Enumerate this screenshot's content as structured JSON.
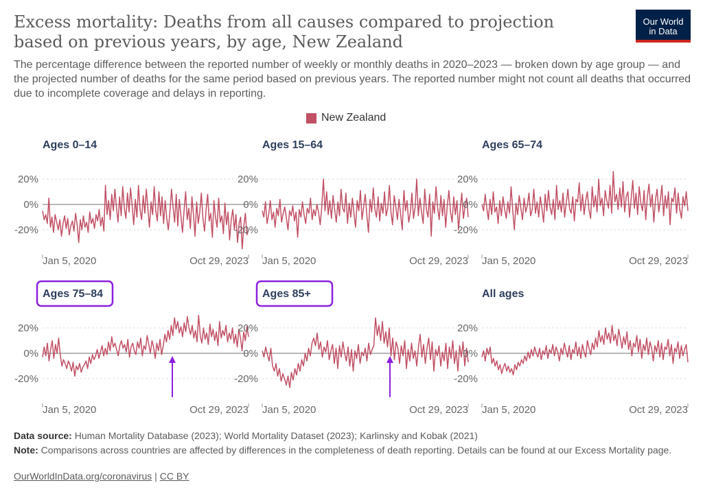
{
  "header": {
    "title": "Excess mortality: Deaths from all causes compared to projection based on previous years, by age, New Zealand",
    "subtitle": "The percentage difference between the reported number of weekly or monthly deaths in 2020–2023 — broken down by age group — and the projected number of deaths for the same period based on previous years. The reported number might not count all deaths that occurred due to incomplete coverage and delays in reporting.",
    "logo_line1": "Our World",
    "logo_line2": "in Data"
  },
  "legend": {
    "label": "New Zealand",
    "color": "#c15065"
  },
  "colors": {
    "series": "#c15065",
    "highlight": "#8c1fe0",
    "title": "#2d3e5c",
    "zero_line": "#8c8c8c"
  },
  "chart_data": [
    {
      "type": "line",
      "title": "Ages 0–14",
      "highlighted": false,
      "x_start_label": "Jan 5, 2020",
      "x_end_label": "Oct 29, 2023",
      "yticks": [
        {
          "v": 20,
          "label": "20%"
        },
        {
          "v": 0,
          "label": "0%"
        },
        {
          "v": -20,
          "label": "-20%"
        }
      ],
      "ylim": [
        -37,
        30
      ],
      "annotation_arrow": false,
      "series": [
        {
          "name": "New Zealand",
          "values": [
            -5,
            -12,
            -8,
            -15,
            5,
            -18,
            -10,
            -22,
            -8,
            -14,
            -20,
            -12,
            -25,
            -15,
            -9,
            -19,
            -11,
            -24,
            -17,
            -13,
            -21,
            -7,
            -16,
            -30,
            -12,
            -20,
            -9,
            -18,
            -14,
            -22,
            -6,
            -15,
            -11,
            -19,
            -8,
            -13,
            -4,
            -17,
            -10,
            -21,
            15,
            -8,
            3,
            -12,
            8,
            -5,
            12,
            -2,
            -14,
            6,
            -9,
            14,
            -3,
            -11,
            9,
            -6,
            13,
            -1,
            -16,
            4,
            -10,
            15,
            -4,
            -12,
            7,
            -7,
            12,
            -3,
            -18,
            2,
            -8,
            14,
            -5,
            -13,
            10,
            -9,
            6,
            -15,
            3,
            -11,
            -20,
            -6,
            12,
            -2,
            -14,
            8,
            -17,
            4,
            -9,
            -22,
            -5,
            10,
            -12,
            -3,
            -19,
            6,
            -8,
            -25,
            2,
            -15,
            -6,
            9,
            -11,
            -21,
            -4,
            8,
            -13,
            -7,
            -26,
            3,
            -10,
            -18,
            5,
            -14,
            -9,
            -23,
            1,
            -16,
            -6,
            -28,
            -12,
            -4,
            -20,
            -8,
            -30,
            -15,
            -10,
            -35,
            -17,
            -7,
            -24,
            -20
          ]
        }
      ]
    },
    {
      "type": "line",
      "title": "Ages 15–64",
      "highlighted": false,
      "x_start_label": "Jan 5, 2020",
      "x_end_label": "Oct 29, 2023",
      "yticks": [
        {
          "v": 20,
          "label": "20%"
        },
        {
          "v": 0,
          "label": "0%"
        },
        {
          "v": -20,
          "label": "-20%"
        }
      ],
      "ylim": [
        -37,
        30
      ],
      "annotation_arrow": false,
      "series": [
        {
          "name": "New Zealand",
          "values": [
            -5,
            -10,
            2,
            -15,
            -8,
            3,
            -12,
            -6,
            -18,
            -3,
            -9,
            4,
            -14,
            -7,
            -2,
            -11,
            -20,
            -5,
            -9,
            -1,
            -13,
            -6,
            -26,
            -4,
            -10,
            2,
            -8,
            -15,
            -3,
            -7,
            5,
            -12,
            -4,
            -9,
            0,
            -6,
            -16,
            -2,
            20,
            -5,
            10,
            -8,
            3,
            -11,
            7,
            -4,
            -14,
            2,
            -9,
            12,
            -3,
            -6,
            9,
            -15,
            1,
            -10,
            5,
            -7,
            -18,
            3,
            -5,
            11,
            -12,
            -2,
            8,
            -8,
            -22,
            4,
            -6,
            13,
            -4,
            -10,
            6,
            -13,
            1,
            -7,
            10,
            -9,
            -3,
            15,
            -6,
            -16,
            7,
            -2,
            -12,
            4,
            -8,
            -20,
            11,
            -5,
            3,
            -14,
            -7,
            9,
            -11,
            -2,
            20,
            -9,
            5,
            -6,
            -15,
            12,
            -4,
            -10,
            8,
            -25,
            2,
            -7,
            14,
            -3,
            -12,
            7,
            -9,
            4,
            -18,
            -1,
            11,
            -6,
            -14,
            6,
            -8,
            3,
            -20,
            -4,
            9,
            -11,
            -2,
            5,
            -10
          ]
        }
      ]
    },
    {
      "type": "line",
      "title": "Ages 65–74",
      "highlighted": false,
      "x_start_label": "Jan 5, 2020",
      "x_end_label": "Oct 29, 2023",
      "yticks": [
        {
          "v": 20,
          "label": "20%"
        },
        {
          "v": 0,
          "label": "0%"
        },
        {
          "v": -20,
          "label": "-20%"
        }
      ],
      "ylim": [
        -37,
        30
      ],
      "annotation_arrow": false,
      "series": [
        {
          "name": "New Zealand",
          "values": [
            0,
            -5,
            8,
            -3,
            -12,
            4,
            -8,
            10,
            -6,
            -2,
            -15,
            3,
            -9,
            6,
            -4,
            -11,
            2,
            -7,
            14,
            -5,
            -20,
            1,
            -8,
            7,
            -3,
            -12,
            5,
            -6,
            -1,
            9,
            -9,
            -4,
            12,
            -7,
            2,
            -10,
            6,
            -3,
            -14,
            8,
            -5,
            11,
            -2,
            -8,
            4,
            -12,
            15,
            -4,
            3,
            -6,
            9,
            -10,
            1,
            12,
            -3,
            -7,
            6,
            -13,
            4,
            2,
            17,
            -5,
            8,
            -8,
            3,
            10,
            -4,
            -11,
            14,
            -2,
            7,
            -6,
            20,
            -1,
            5,
            -9,
            11,
            3,
            -3,
            15,
            -7,
            26,
            2,
            8,
            -4,
            13,
            -2,
            18,
            -6,
            6,
            10,
            -10,
            4,
            19,
            -3,
            9,
            -8,
            14,
            1,
            -5,
            11,
            -12,
            6,
            16,
            -2,
            8,
            -14,
            4,
            12,
            -6,
            3,
            15,
            -9,
            7,
            -3,
            10,
            -16,
            5,
            2,
            13,
            -7,
            9,
            -4,
            -11,
            6,
            -1,
            10,
            -5
          ]
        }
      ]
    },
    {
      "type": "line",
      "title": "Ages 75–84",
      "highlighted": true,
      "x_start_label": "Jan 5, 2020",
      "x_end_label": "Oct 29, 2023",
      "yticks": [
        {
          "v": 20,
          "label": "20%"
        },
        {
          "v": 0,
          "label": "0%"
        },
        {
          "v": -20,
          "label": "-20%"
        }
      ],
      "ylim": [
        -37,
        30
      ],
      "annotation_arrow": true,
      "arrow_position": 0.63,
      "series": [
        {
          "name": "New Zealand",
          "values": [
            -3,
            5,
            -2,
            8,
            -6,
            3,
            10,
            -4,
            7,
            0,
            12,
            -1,
            -10,
            -5,
            -8,
            -12,
            -6,
            -9,
            -14,
            -7,
            -18,
            -10,
            -13,
            -8,
            -15,
            -11,
            -9,
            -6,
            -12,
            -3,
            -8,
            -1,
            -5,
            -2,
            3,
            -4,
            1,
            6,
            -2,
            4,
            -1,
            9,
            2,
            13,
            5,
            8,
            3,
            -2,
            6,
            10,
            4,
            7,
            1,
            11,
            -3,
            5,
            8,
            2,
            -1,
            9,
            4,
            12,
            -2,
            6,
            3,
            14,
            7,
            0,
            10,
            5,
            -4,
            8,
            2,
            11,
            -1,
            6,
            15,
            9,
            18,
            11,
            22,
            14,
            28,
            19,
            25,
            16,
            21,
            13,
            24,
            17,
            29,
            20,
            15,
            22,
            12,
            18,
            9,
            30,
            14,
            8,
            20,
            11,
            16,
            7,
            23,
            13,
            19,
            10,
            17,
            6,
            25,
            12,
            18,
            14,
            22,
            9,
            16,
            11,
            20,
            8,
            15,
            5,
            19,
            12,
            2,
            17,
            10,
            21,
            13
          ]
        }
      ]
    },
    {
      "type": "line",
      "title": "Ages 85+",
      "highlighted": true,
      "x_start_label": "Jan 5, 2020",
      "x_end_label": "Oct 29, 2023",
      "yticks": [
        {
          "v": 20,
          "label": "20%"
        },
        {
          "v": 0,
          "label": "0%"
        },
        {
          "v": -20,
          "label": "-20%"
        }
      ],
      "ylim": [
        -37,
        30
      ],
      "annotation_arrow": true,
      "arrow_position": 0.62,
      "series": [
        {
          "name": "New Zealand",
          "values": [
            2,
            -3,
            5,
            -1,
            -6,
            4,
            -10,
            -14,
            -8,
            -18,
            -12,
            -22,
            -16,
            -20,
            -25,
            -18,
            -27,
            -15,
            -21,
            -12,
            -17,
            -8,
            -14,
            -5,
            -10,
            0,
            -6,
            4,
            -2,
            8,
            12,
            6,
            16,
            3,
            9,
            -3,
            5,
            1,
            10,
            -5,
            2,
            7,
            -8,
            4,
            -12,
            6,
            -3,
            9,
            0,
            -6,
            5,
            -10,
            3,
            -14,
            2,
            -4,
            7,
            -8,
            1,
            -2,
            4,
            -6,
            8,
            -1,
            3,
            6,
            28,
            14,
            22,
            10,
            25,
            8,
            17,
            5,
            20,
            -2,
            12,
            -5,
            9,
            4,
            -8,
            6,
            -2,
            10,
            -12,
            3,
            -6,
            8,
            -4,
            2,
            -10,
            5,
            15,
            -3,
            7,
            -8,
            4,
            12,
            -5,
            9,
            -14,
            3,
            -2,
            6,
            -10,
            1,
            -6,
            8,
            -12,
            5,
            -4,
            10,
            -8,
            2,
            -14,
            6,
            -3,
            9,
            -10,
            4,
            -7
          ]
        }
      ]
    },
    {
      "type": "line",
      "title": "All ages",
      "highlighted": false,
      "x_start_label": "Jan 5, 2020",
      "x_end_label": "Oct 29, 2023",
      "yticks": [
        {
          "v": 20,
          "label": "20%"
        },
        {
          "v": 0,
          "label": "0%"
        },
        {
          "v": -20,
          "label": "-20%"
        }
      ],
      "ylim": [
        -37,
        30
      ],
      "annotation_arrow": false,
      "series": [
        {
          "name": "New Zealand",
          "values": [
            -3,
            2,
            -6,
            4,
            -1,
            5,
            -8,
            -4,
            -10,
            -6,
            -13,
            -9,
            -16,
            -11,
            -8,
            -14,
            -10,
            -15,
            -12,
            -17,
            -9,
            -13,
            -7,
            -10,
            -5,
            -8,
            -2,
            -6,
            1,
            -4,
            3,
            -2,
            5,
            0,
            -3,
            4,
            -5,
            2,
            -1,
            6,
            -4,
            3,
            0,
            7,
            -2,
            5,
            1,
            -6,
            4,
            -1,
            8,
            2,
            -3,
            6,
            -5,
            3,
            0,
            9,
            -2,
            5,
            -4,
            7,
            1,
            -3,
            10,
            4,
            -1,
            8,
            3,
            12,
            5,
            18,
            9,
            14,
            7,
            20,
            11,
            16,
            8,
            22,
            10,
            15,
            6,
            19,
            12,
            4,
            13,
            7,
            17,
            3,
            10,
            -2,
            8,
            5,
            14,
            1,
            11,
            -4,
            7,
            2,
            12,
            -1,
            9,
            4,
            -6,
            6,
            1,
            10,
            -3,
            8,
            -5,
            5,
            3,
            11,
            -2,
            7,
            -8,
            4,
            1,
            9,
            -4,
            6,
            -2,
            3,
            7,
            -7
          ]
        }
      ]
    }
  ],
  "footer": {
    "source_label": "Data source:",
    "source_text": "Human Mortality Database (2023); World Mortality Dataset (2023); Karlinsky and Kobak (2021)",
    "note_label": "Note:",
    "note_text": "Comparisons across countries are affected by differences in the completeness of death reporting. Details can be found at our Excess Mortality page.",
    "link_text": "OurWorldInData.org/coronavirus",
    "separator": "|",
    "license_text": "CC BY"
  }
}
